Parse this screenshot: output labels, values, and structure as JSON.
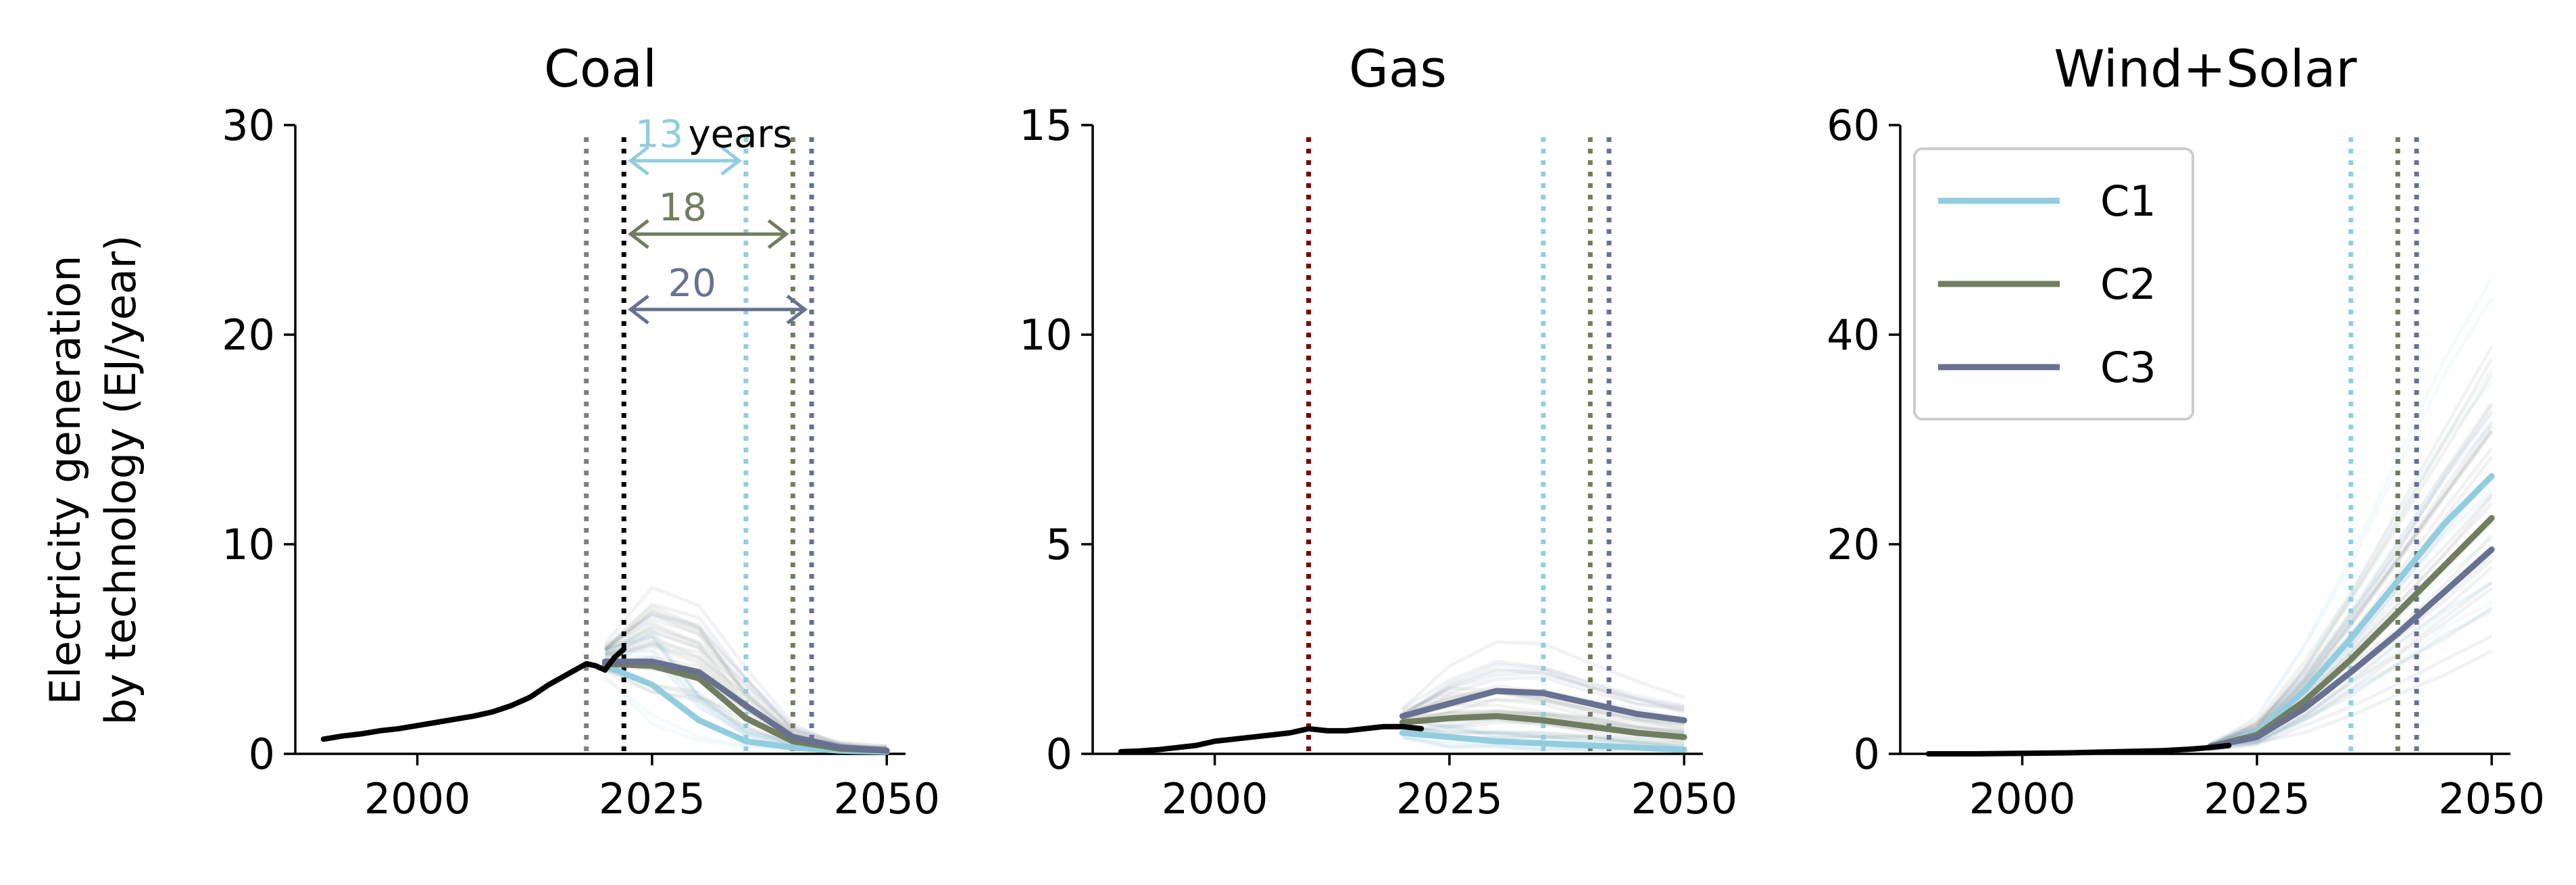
{
  "figure": {
    "ylabel_lines": [
      "Electricity generation",
      "by technology (EJ/year)"
    ]
  },
  "colors": {
    "C1": "#92cddf",
    "C2": "#717d5f",
    "C3": "#687191",
    "historical": "#000000",
    "gray_marker": "#7f7f7f",
    "red_marker": "#7f0000"
  },
  "legend": {
    "placement": "top-left of third panel",
    "entries": [
      {
        "label": "C1",
        "color": "#92cddf"
      },
      {
        "label": "C2",
        "color": "#717d5f"
      },
      {
        "label": "C3",
        "color": "#687191"
      }
    ]
  },
  "chart_data": [
    {
      "type": "line",
      "title": "Coal",
      "xlim": [
        1987,
        2052
      ],
      "ylim": [
        0,
        30
      ],
      "xticks": [
        2000,
        2025,
        2050
      ],
      "yticks": [
        0,
        10,
        20,
        30
      ],
      "historical": {
        "x": [
          1990,
          1992,
          1994,
          1996,
          1998,
          2000,
          2002,
          2004,
          2006,
          2008,
          2010,
          2012,
          2014,
          2016,
          2018,
          2019,
          2020,
          2021,
          2022
        ],
        "y": [
          0.7,
          0.85,
          0.95,
          1.1,
          1.2,
          1.35,
          1.5,
          1.65,
          1.8,
          2.0,
          2.3,
          2.7,
          3.3,
          3.8,
          4.3,
          4.2,
          4.0,
          4.6,
          5.0
        ]
      },
      "series": [
        {
          "name": "C1",
          "x": [
            2020,
            2025,
            2030,
            2035,
            2040,
            2045,
            2050
          ],
          "y": [
            4.2,
            3.3,
            1.6,
            0.6,
            0.3,
            0.15,
            0.1
          ]
        },
        {
          "name": "C2",
          "x": [
            2020,
            2025,
            2030,
            2035,
            2040,
            2045,
            2050
          ],
          "y": [
            4.3,
            4.2,
            3.6,
            1.7,
            0.6,
            0.25,
            0.15
          ]
        },
        {
          "name": "C3",
          "x": [
            2020,
            2025,
            2030,
            2035,
            2040,
            2045,
            2050
          ],
          "y": [
            4.4,
            4.4,
            3.9,
            2.3,
            0.8,
            0.3,
            0.15
          ]
        }
      ],
      "vlines": [
        {
          "x": 2018,
          "color": "#7f7f7f"
        },
        {
          "x": 2022,
          "color": "#000000"
        },
        {
          "x": 2035,
          "color": "#92cddf"
        },
        {
          "x": 2040,
          "color": "#717d5f"
        },
        {
          "x": 2042,
          "color": "#687191"
        }
      ],
      "annotations": [
        {
          "x_from": 2022,
          "x_to": 2035,
          "y": 28.3,
          "label": "13",
          "color": "#92cddf"
        },
        {
          "x_from": 2022,
          "x_to": 2040,
          "y": 24.8,
          "label": "18",
          "color": "#717d5f"
        },
        {
          "x_from": 2022,
          "x_to": 2042,
          "y": 21.2,
          "label": "20",
          "color": "#687191"
        }
      ],
      "annotation_suffix": "years"
    },
    {
      "type": "line",
      "title": "Gas",
      "xlim": [
        1987,
        2052
      ],
      "ylim": [
        0,
        15
      ],
      "xticks": [
        2000,
        2025,
        2050
      ],
      "yticks": [
        0,
        5,
        10,
        15
      ],
      "historical": {
        "x": [
          1990,
          1992,
          1994,
          1996,
          1998,
          2000,
          2002,
          2004,
          2006,
          2008,
          2010,
          2012,
          2014,
          2016,
          2018,
          2020,
          2022
        ],
        "y": [
          0.05,
          0.07,
          0.1,
          0.15,
          0.2,
          0.3,
          0.35,
          0.4,
          0.45,
          0.5,
          0.6,
          0.55,
          0.55,
          0.6,
          0.65,
          0.65,
          0.6
        ]
      },
      "series": [
        {
          "name": "C1",
          "x": [
            2020,
            2025,
            2030,
            2035,
            2040,
            2045,
            2050
          ],
          "y": [
            0.5,
            0.4,
            0.3,
            0.25,
            0.2,
            0.15,
            0.1
          ]
        },
        {
          "name": "C2",
          "x": [
            2020,
            2025,
            2030,
            2035,
            2040,
            2045,
            2050
          ],
          "y": [
            0.75,
            0.85,
            0.9,
            0.8,
            0.65,
            0.5,
            0.4
          ]
        },
        {
          "name": "C3",
          "x": [
            2020,
            2025,
            2030,
            2035,
            2040,
            2045,
            2050
          ],
          "y": [
            0.9,
            1.2,
            1.5,
            1.45,
            1.2,
            0.95,
            0.8
          ]
        }
      ],
      "vlines": [
        {
          "x": 2010,
          "color": "#7f0000"
        },
        {
          "x": 2035,
          "color": "#92cddf"
        },
        {
          "x": 2040,
          "color": "#717d5f"
        },
        {
          "x": 2042,
          "color": "#687191"
        }
      ]
    },
    {
      "type": "line",
      "title": "Wind+Solar",
      "xlim": [
        1987,
        2052
      ],
      "ylim": [
        0,
        60
      ],
      "xticks": [
        2000,
        2025,
        2050
      ],
      "yticks": [
        0,
        20,
        40,
        60
      ],
      "historical": {
        "x": [
          1990,
          1995,
          2000,
          2005,
          2010,
          2015,
          2018,
          2020,
          2022
        ],
        "y": [
          0.0,
          0.0,
          0.05,
          0.1,
          0.2,
          0.3,
          0.45,
          0.6,
          0.8
        ]
      },
      "series": [
        {
          "name": "C1",
          "x": [
            2020,
            2025,
            2030,
            2035,
            2040,
            2045,
            2050
          ],
          "y": [
            0.7,
            2.0,
            6.0,
            11.0,
            16.5,
            22.0,
            26.5
          ]
        },
        {
          "name": "C2",
          "x": [
            2020,
            2025,
            2030,
            2035,
            2040,
            2045,
            2050
          ],
          "y": [
            0.7,
            1.8,
            5.0,
            9.0,
            13.5,
            18.0,
            22.5
          ]
        },
        {
          "name": "C3",
          "x": [
            2020,
            2025,
            2030,
            2035,
            2040,
            2045,
            2050
          ],
          "y": [
            0.7,
            1.6,
            4.3,
            7.8,
            11.5,
            15.5,
            19.5
          ]
        }
      ],
      "vlines": [
        {
          "x": 2035,
          "color": "#92cddf"
        },
        {
          "x": 2040,
          "color": "#717d5f"
        },
        {
          "x": 2042,
          "color": "#687191"
        }
      ]
    }
  ]
}
